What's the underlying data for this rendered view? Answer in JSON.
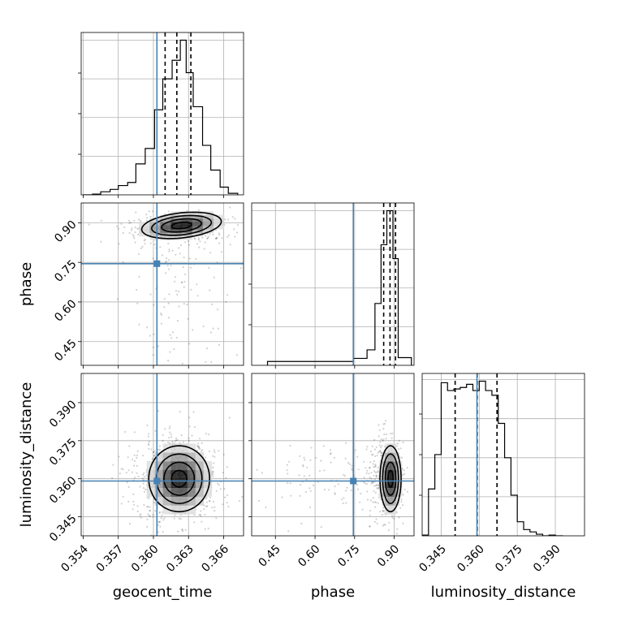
{
  "chart_data": {
    "type": "corner",
    "parameters": [
      "geocent_time",
      "phase",
      "luminosity_distance"
    ],
    "truths": {
      "geocent_time": 0.3603,
      "phase": 0.745,
      "luminosity_distance": 0.3591
    },
    "truth_color": "#4682b4",
    "grid": true,
    "axes": {
      "geocent_time": {
        "range": [
          0.35383,
          0.3677
        ],
        "ticks": [
          0.354,
          0.357,
          0.36,
          0.363,
          0.366
        ],
        "tick_labels": [
          "0.354",
          "0.357",
          "0.360",
          "0.363",
          "0.366"
        ]
      },
      "phase": {
        "range": [
          0.36,
          0.975
        ],
        "ticks": [
          0.45,
          0.6,
          0.75,
          0.9
        ],
        "tick_labels": [
          "0.45",
          "0.60",
          "0.75",
          "0.90"
        ]
      },
      "luminosity_distance": {
        "range": [
          0.3375,
          0.4015
        ],
        "ticks": [
          0.345,
          0.36,
          0.375,
          0.39
        ],
        "tick_labels": [
          "0.345",
          "0.360",
          "0.375",
          "0.390"
        ]
      }
    },
    "histograms": {
      "geocent_time": {
        "quantiles": [
          0.361,
          0.362,
          0.3632
        ],
        "bins": [
          {
            "x0": 0.354,
            "x1": 0.3548,
            "h": 0.0
          },
          {
            "x0": 0.3548,
            "x1": 0.3555,
            "h": 0.005
          },
          {
            "x0": 0.3555,
            "x1": 0.3563,
            "h": 0.02
          },
          {
            "x0": 0.3563,
            "x1": 0.357,
            "h": 0.035
          },
          {
            "x0": 0.357,
            "x1": 0.3578,
            "h": 0.06
          },
          {
            "x0": 0.3578,
            "x1": 0.3585,
            "h": 0.08
          },
          {
            "x0": 0.3585,
            "x1": 0.3593,
            "h": 0.2
          },
          {
            "x0": 0.3593,
            "x1": 0.3601,
            "h": 0.3
          },
          {
            "x0": 0.3601,
            "x1": 0.3608,
            "h": 0.55
          },
          {
            "x0": 0.3608,
            "x1": 0.3616,
            "h": 0.75
          },
          {
            "x0": 0.3616,
            "x1": 0.3623,
            "h": 0.87
          },
          {
            "x0": 0.3623,
            "x1": 0.3628,
            "h": 1.0
          },
          {
            "x0": 0.3628,
            "x1": 0.3634,
            "h": 0.79
          },
          {
            "x0": 0.3634,
            "x1": 0.3642,
            "h": 0.57
          },
          {
            "x0": 0.3642,
            "x1": 0.3649,
            "h": 0.32
          },
          {
            "x0": 0.3649,
            "x1": 0.3657,
            "h": 0.16
          },
          {
            "x0": 0.3657,
            "x1": 0.3664,
            "h": 0.05
          },
          {
            "x0": 0.3664,
            "x1": 0.3672,
            "h": 0.01
          }
        ]
      },
      "phase": {
        "quantiles": [
          0.86,
          0.884,
          0.905
        ],
        "bins": [
          {
            "x0": 0.42,
            "x1": 0.745,
            "h": 0.025
          },
          {
            "x0": 0.745,
            "x1": 0.797,
            "h": 0.045
          },
          {
            "x0": 0.797,
            "x1": 0.827,
            "h": 0.1
          },
          {
            "x0": 0.827,
            "x1": 0.85,
            "h": 0.4
          },
          {
            "x0": 0.85,
            "x1": 0.872,
            "h": 0.78
          },
          {
            "x0": 0.872,
            "x1": 0.895,
            "h": 1.0
          },
          {
            "x0": 0.895,
            "x1": 0.915,
            "h": 0.69
          },
          {
            "x0": 0.915,
            "x1": 0.965,
            "h": 0.05
          }
        ]
      },
      "luminosity_distance": {
        "quantiles": [
          0.3505,
          0.3592,
          0.367
        ],
        "bins": [
          {
            "x0": 0.3375,
            "x1": 0.34,
            "h": 0.005
          },
          {
            "x0": 0.34,
            "x1": 0.3425,
            "h": 0.3
          },
          {
            "x0": 0.3425,
            "x1": 0.345,
            "h": 0.52
          },
          {
            "x0": 0.345,
            "x1": 0.3475,
            "h": 0.98
          },
          {
            "x0": 0.3475,
            "x1": 0.35,
            "h": 0.93
          },
          {
            "x0": 0.35,
            "x1": 0.3525,
            "h": 0.94
          },
          {
            "x0": 0.3525,
            "x1": 0.355,
            "h": 0.95
          },
          {
            "x0": 0.355,
            "x1": 0.3575,
            "h": 0.97
          },
          {
            "x0": 0.3575,
            "x1": 0.36,
            "h": 0.93
          },
          {
            "x0": 0.36,
            "x1": 0.3625,
            "h": 0.99
          },
          {
            "x0": 0.3625,
            "x1": 0.365,
            "h": 0.93
          },
          {
            "x0": 0.365,
            "x1": 0.3675,
            "h": 0.9
          },
          {
            "x0": 0.3675,
            "x1": 0.37,
            "h": 0.72
          },
          {
            "x0": 0.37,
            "x1": 0.3725,
            "h": 0.5
          },
          {
            "x0": 0.3725,
            "x1": 0.375,
            "h": 0.26
          },
          {
            "x0": 0.375,
            "x1": 0.3775,
            "h": 0.09
          },
          {
            "x0": 0.3775,
            "x1": 0.38,
            "h": 0.04
          },
          {
            "x0": 0.38,
            "x1": 0.3825,
            "h": 0.025
          },
          {
            "x0": 0.3825,
            "x1": 0.385,
            "h": 0.01
          },
          {
            "x0": 0.385,
            "x1": 0.3875,
            "h": 0.0
          },
          {
            "x0": 0.3875,
            "x1": 0.39,
            "h": 0.005
          },
          {
            "x0": 0.39,
            "x1": 0.393,
            "h": 0.0
          }
        ]
      }
    },
    "joint": [
      {
        "x": "geocent_time",
        "y": "phase",
        "scatter": {
          "n": 450,
          "x_mean": 0.362,
          "x_sd": 0.0021,
          "y_mode": 0.88,
          "y_sd": 0.1
        },
        "density": {
          "x_mean": 0.3624,
          "x_sd": 0.0017,
          "y_mean": 0.89,
          "y_sd": 0.025,
          "rho": 0.3
        }
      },
      {
        "x": "geocent_time",
        "y": "luminosity_distance",
        "scatter": {
          "n": 700,
          "x_mean": 0.362,
          "x_sd": 0.0019,
          "y_mean": 0.36,
          "y_sd": 0.0085
        },
        "density": {
          "x_mean": 0.3622,
          "x_sd": 0.0013,
          "y_mean": 0.36,
          "y_sd": 0.0065,
          "rho": 0.0
        }
      },
      {
        "x": "phase",
        "y": "luminosity_distance",
        "scatter": {
          "n": 550,
          "x_mode": 0.88,
          "x_sd": 0.1,
          "y_mean": 0.36,
          "y_sd": 0.0085
        },
        "density": {
          "x_mean": 0.886,
          "x_sd": 0.02,
          "y_mean": 0.36,
          "y_sd": 0.0065,
          "rho": 0.0
        }
      }
    ]
  }
}
